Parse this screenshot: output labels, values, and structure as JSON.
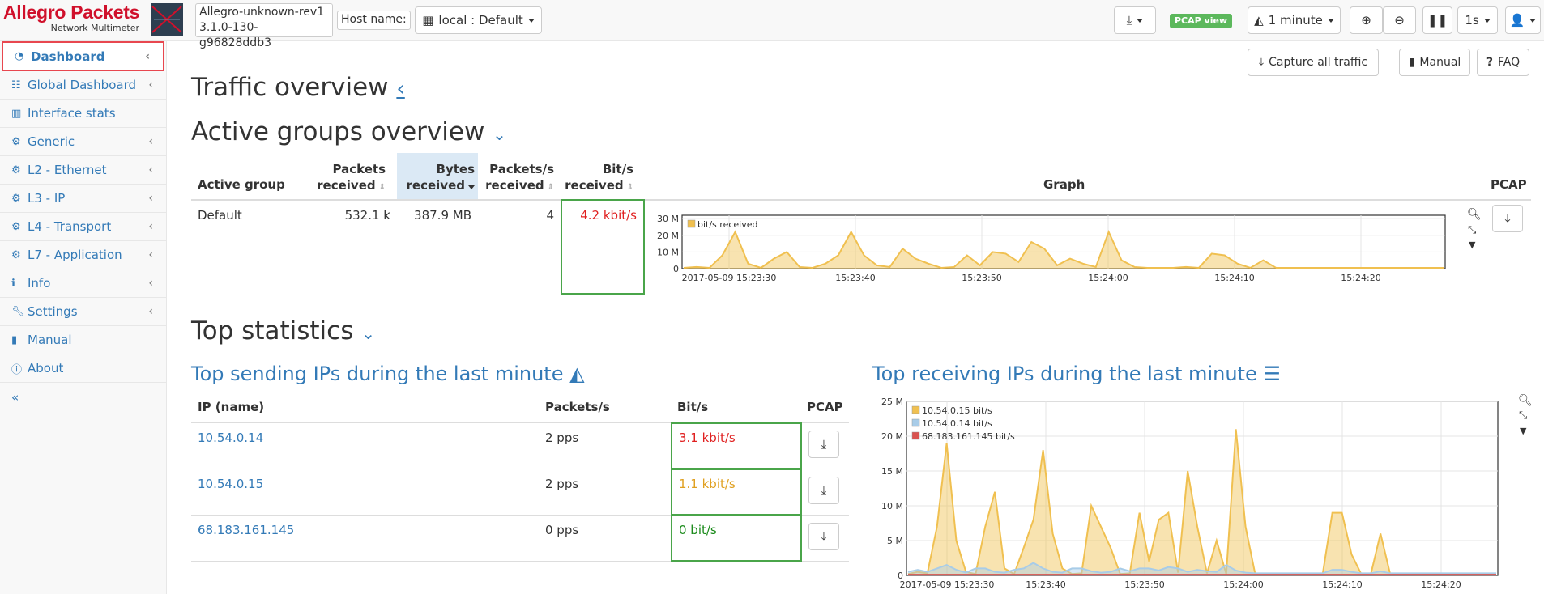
{
  "brand": {
    "name": "Allegro Packets",
    "subtitle": "Network Multimeter"
  },
  "device": {
    "name": "Allegro-unknown-rev1",
    "version": "3.1.0-130-g96828ddb3"
  },
  "host": {
    "label": "Host name:",
    "value": "local : Default"
  },
  "toolbar": {
    "pcap_view": "PCAP view",
    "interval": "1 minute",
    "refresh": "1s"
  },
  "actions": {
    "capture_all": "Capture all traffic",
    "manual": "Manual",
    "faq": "FAQ"
  },
  "sidebar": {
    "items": [
      {
        "label": "Dashboard",
        "icon": "dashboard-icon",
        "chevron": true
      },
      {
        "label": "Global Dashboard",
        "icon": "list-icon",
        "chevron": true
      },
      {
        "label": "Interface stats",
        "icon": "bar-chart-icon",
        "chevron": false
      },
      {
        "label": "Generic",
        "icon": "gear-icon",
        "chevron": true
      },
      {
        "label": "L2 - Ethernet",
        "icon": "gear-icon",
        "chevron": true
      },
      {
        "label": "L3 - IP",
        "icon": "gear-icon",
        "chevron": true
      },
      {
        "label": "L4 - Transport",
        "icon": "gear-icon",
        "chevron": true
      },
      {
        "label": "L7 - Application",
        "icon": "gear-icon",
        "chevron": true
      },
      {
        "label": "Info",
        "icon": "info-icon",
        "chevron": true
      },
      {
        "label": "Settings",
        "icon": "wrench-icon",
        "chevron": true
      },
      {
        "label": "Manual",
        "icon": "book-icon",
        "chevron": false
      },
      {
        "label": "About",
        "icon": "info-circle-icon",
        "chevron": false
      }
    ],
    "collapse": "«"
  },
  "traffic": {
    "title": "Traffic overview"
  },
  "groups": {
    "title": "Active groups overview",
    "headers": {
      "group": "Active group",
      "packets": "Packets received",
      "bytes": "Bytes received",
      "pps": "Packets/s received",
      "bps": "Bit/s received",
      "graph": "Graph",
      "pcap": "PCAP"
    },
    "row": {
      "group": "Default",
      "packets": "532.1 k",
      "bytes": "387.9 MB",
      "pps": "4",
      "bps": "4.2 kbit/s"
    }
  },
  "top": {
    "title": "Top statistics",
    "sending_title": "Top sending IPs during the last minute",
    "receiving_title": "Top receiving IPs during the last minute",
    "headers": {
      "ip": "IP (name)",
      "pps": "Packets/s",
      "bps": "Bit/s",
      "pcap": "PCAP"
    },
    "rows": [
      {
        "ip": "10.54.0.14",
        "pps": "2 pps",
        "bps": "3.1 kbit/s",
        "color": "#e02020"
      },
      {
        "ip": "10.54.0.15",
        "pps": "2 pps",
        "bps": "1.1 kbit/s",
        "color": "#e0a020"
      },
      {
        "ip": "68.183.161.145",
        "pps": "0 pps",
        "bps": "0 bit/s",
        "color": "#1a8a1a"
      }
    ]
  },
  "chart_data": [
    {
      "type": "area",
      "series": [
        {
          "name": "bit/s received",
          "color": "#f0c050",
          "values": [
            0.5,
            1,
            0.5,
            8,
            22,
            3,
            0.5,
            6,
            10,
            1,
            0.5,
            3,
            8,
            22,
            8,
            2,
            1,
            12,
            6,
            3,
            0.5,
            1,
            8,
            2,
            10,
            9,
            4,
            16,
            12,
            2,
            6,
            3,
            1,
            22,
            5,
            1,
            0.5,
            0.5,
            0.5,
            1,
            0.5,
            9,
            8,
            3,
            0.5,
            5,
            0.5,
            0.5,
            0.5,
            0.5,
            0.5,
            0.5,
            0.5,
            0.5,
            0.5,
            0.5,
            0.5,
            0.5,
            0.5,
            0.5
          ]
        }
      ],
      "ylim": [
        0,
        32
      ],
      "yticks": [
        "0",
        "10 M",
        "20 M",
        "30 M"
      ],
      "xticks": [
        "2017-05-09 15:23:30",
        "15:23:40",
        "15:23:50",
        "15:24:00",
        "15:24:10",
        "15:24:20"
      ]
    },
    {
      "type": "area",
      "series": [
        {
          "name": "10.54.0.15 bit/s",
          "color": "#f0c050",
          "values": [
            0.2,
            0.5,
            0.3,
            7,
            19,
            5,
            0.5,
            0.2,
            7,
            12,
            1,
            0.2,
            4,
            8,
            18,
            6,
            1,
            0.2,
            0.3,
            10,
            7,
            4,
            0.2,
            0.3,
            9,
            2,
            8,
            9,
            0.4,
            15,
            7,
            0.3,
            5,
            0.2,
            21,
            7,
            0.2,
            0.2,
            0.2,
            0.2,
            0.2,
            0.2,
            0.2,
            0.2,
            9,
            9,
            3,
            0.2,
            0.2,
            6,
            0.2,
            0.2,
            0.2,
            0.2,
            0.2,
            0.2,
            0.2,
            0.2,
            0.2,
            0.2,
            0.2,
            0.2
          ]
        },
        {
          "name": "10.54.0.14 bit/s",
          "color": "#a8cce8",
          "values": [
            0.5,
            0.8,
            0.5,
            1,
            1.5,
            0.8,
            0.4,
            1,
            1,
            0.5,
            0.4,
            0.8,
            1,
            1.8,
            1,
            0.5,
            0.4,
            1,
            1,
            0.6,
            0.4,
            0.5,
            1,
            0.6,
            1,
            1,
            0.7,
            1.2,
            1,
            0.5,
            0.8,
            0.6,
            0.5,
            1.5,
            0.7,
            0.4,
            0.3,
            0.3,
            0.3,
            0.3,
            0.3,
            0.3,
            0.3,
            0.3,
            0.8,
            0.8,
            0.5,
            0.3,
            0.3,
            0.6,
            0.3,
            0.3,
            0.3,
            0.3,
            0.3,
            0.3,
            0.3,
            0.3,
            0.3,
            0.3,
            0.3,
            0.3
          ]
        },
        {
          "name": "68.183.161.145 bit/s",
          "color": "#d9534f",
          "values": [
            0.1,
            0.1,
            0.1,
            0.1,
            0.1,
            0.1,
            0.1,
            0.1,
            0.1,
            0.1,
            0.1,
            0.1,
            0.1,
            0.1,
            0.1,
            0.1,
            0.1,
            0.1,
            0.1,
            0.1,
            0.1,
            0.1,
            0.1,
            0.1,
            0.1,
            0.1,
            0.1,
            0.1,
            0.1,
            0.1,
            0.1,
            0.1,
            0.1,
            0.1,
            0.1,
            0.1,
            0.1,
            0.1,
            0.1,
            0.1,
            0.1,
            0.1,
            0.1,
            0.1,
            0.1,
            0.1,
            0.1,
            0.1,
            0.1,
            0.1,
            0.1,
            0.1,
            0.1,
            0.1,
            0.1,
            0.1,
            0.1,
            0.1,
            0.1,
            0.1,
            0.1,
            0.1
          ]
        }
      ],
      "ylim": [
        0,
        25
      ],
      "yticks": [
        "0",
        "5 M",
        "10 M",
        "15 M",
        "20 M",
        "25 M"
      ],
      "xticks": [
        "2017-05-09 15:23:30",
        "15:23:40",
        "15:23:50",
        "15:24:00",
        "15:24:10",
        "15:24:20"
      ]
    }
  ]
}
